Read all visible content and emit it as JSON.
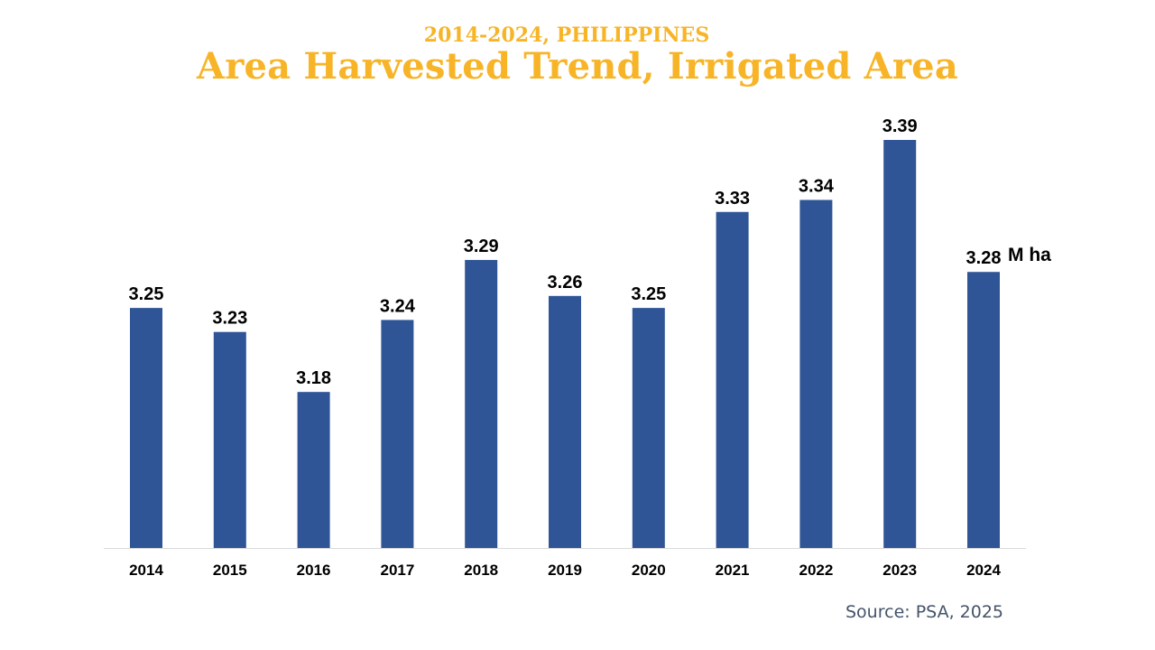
{
  "header": {
    "subtitle": "2014-2024, PHILIPPINES",
    "title": "Area Harvested Trend, Irrigated Area"
  },
  "chart_data": {
    "type": "bar",
    "categories": [
      "2014",
      "2015",
      "2016",
      "2017",
      "2018",
      "2019",
      "2020",
      "2021",
      "2022",
      "2023",
      "2024"
    ],
    "values": [
      3.25,
      3.23,
      3.18,
      3.24,
      3.29,
      3.26,
      3.25,
      3.33,
      3.34,
      3.39,
      3.28
    ],
    "value_labels": [
      "3.25",
      "3.23",
      "3.18",
      "3.24",
      "3.29",
      "3.26",
      "3.25",
      "3.33",
      "3.34",
      "3.39",
      "3.28"
    ],
    "unit_label": "M ha",
    "bar_color": "#2F5597",
    "ylim": [
      3.05,
      3.39
    ],
    "grid": false
  },
  "footer": {
    "source": "Source: PSA, 2025"
  }
}
